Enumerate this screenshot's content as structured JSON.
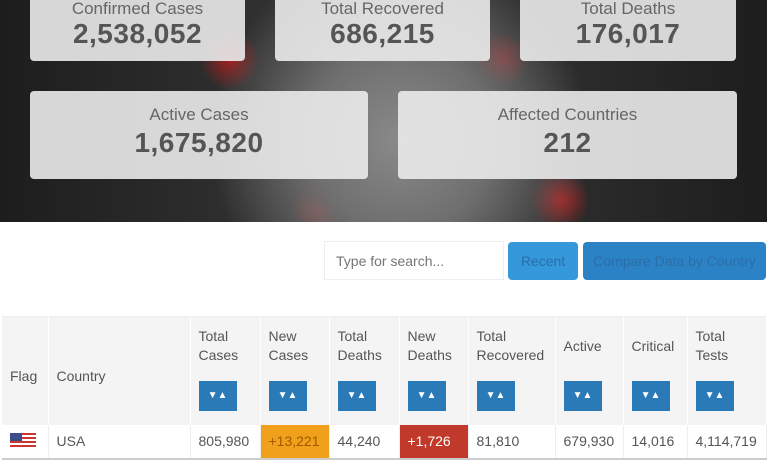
{
  "stats": [
    {
      "label": "Confirmed Cases",
      "value": "2,538,052"
    },
    {
      "label": "Total Recovered",
      "value": "686,215"
    },
    {
      "label": "Total Deaths",
      "value": "176,017"
    },
    {
      "label": "Active Cases",
      "value": "1,675,820"
    },
    {
      "label": "Affected Countries",
      "value": "212"
    }
  ],
  "search": {
    "placeholder": "Type for search..."
  },
  "buttons": {
    "recent": "Recent",
    "compare": "Compare Data by Country"
  },
  "table": {
    "headers": [
      "Flag",
      "Country",
      "Total Cases",
      "New Cases",
      "Total Deaths",
      "New Deaths",
      "Total Recovered",
      "Active",
      "Critical",
      "Total Tests"
    ],
    "sort_icon": "▼▲",
    "rows": [
      {
        "flag": "us-flag-icon",
        "country": "USA",
        "total_cases": "805,980",
        "new_cases": "+13,221",
        "total_deaths": "44,240",
        "new_deaths": "+1,726",
        "total_recovered": "81,810",
        "active": "679,930",
        "critical": "14,016",
        "total_tests": "4,114,719"
      }
    ]
  },
  "colors": {
    "accent": "#2a7ab8",
    "new_cases": "#f0a01a",
    "new_deaths": "#c0392b"
  }
}
